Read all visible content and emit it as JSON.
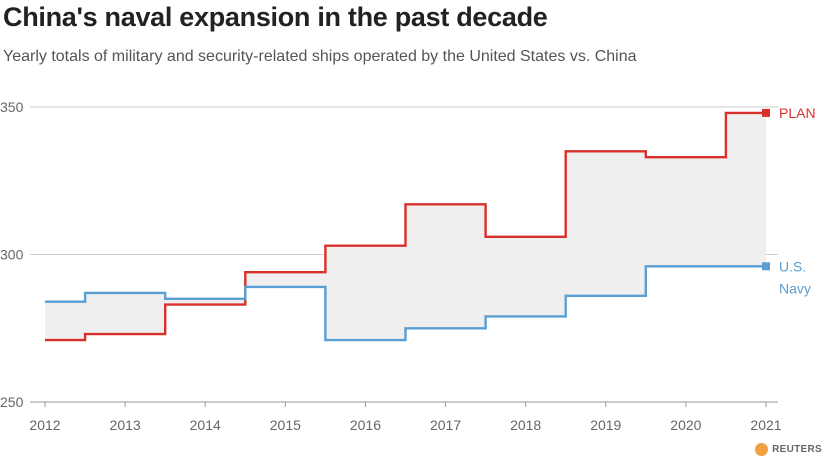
{
  "title": "China's naval expansion in the past decade",
  "subtitle": "Yearly totals of military and security-related ships operated by the United States vs. China",
  "credit": "REUTERS",
  "colors": {
    "plan": "#d9312a",
    "usn": "#5a9fd4",
    "fill": "#efefef",
    "grid": "#cccccc",
    "axis": "#999999"
  },
  "chart_data": {
    "type": "line",
    "step": "mid",
    "x": [
      2012,
      2013,
      2014,
      2015,
      2016,
      2017,
      2018,
      2019,
      2020,
      2021
    ],
    "xlim": [
      2012,
      2021
    ],
    "ylim": [
      250,
      350
    ],
    "yticks": [
      250,
      300,
      350
    ],
    "grid": true,
    "series": [
      {
        "name": "PLAN",
        "label_lines": [
          "PLAN"
        ],
        "color": "#d9312a",
        "values": [
          271,
          273,
          283,
          294,
          303,
          317,
          306,
          335,
          333,
          348
        ]
      },
      {
        "name": "U.S. Navy",
        "label_lines": [
          "U.S.",
          "Navy"
        ],
        "color": "#5a9fd4",
        "values": [
          284,
          287,
          285,
          289,
          271,
          275,
          279,
          286,
          296,
          296
        ]
      }
    ]
  }
}
